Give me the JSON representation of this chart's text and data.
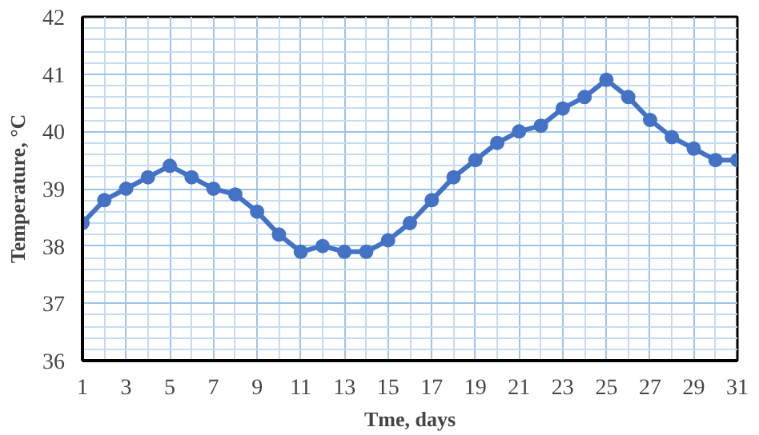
{
  "chart_data": {
    "type": "line",
    "xlabel": "Tme, days",
    "ylabel": "Temperature, °C",
    "x": [
      1,
      2,
      3,
      4,
      5,
      6,
      7,
      8,
      9,
      10,
      11,
      12,
      13,
      14,
      15,
      16,
      17,
      18,
      19,
      20,
      21,
      22,
      23,
      24,
      25,
      26,
      27,
      28,
      29,
      30,
      31
    ],
    "series": [
      {
        "color": "#4472c4",
        "values": [
          38.4,
          38.8,
          39.0,
          39.2,
          39.4,
          39.2,
          39.0,
          38.9,
          38.6,
          38.2,
          37.9,
          38.0,
          37.9,
          37.9,
          38.1,
          38.4,
          38.8,
          39.2,
          39.5,
          39.8,
          40.0,
          40.1,
          40.4,
          40.6,
          40.9,
          40.6,
          40.2,
          39.9,
          39.7,
          39.5,
          39.5
        ]
      }
    ],
    "xlim": [
      1,
      31
    ],
    "xticks": [
      1,
      3,
      5,
      7,
      9,
      11,
      13,
      15,
      17,
      19,
      21,
      23,
      25,
      27,
      29,
      31
    ],
    "ylim": [
      36,
      42
    ],
    "yticks": [
      36,
      37,
      38,
      39,
      40,
      41,
      42
    ],
    "grid": true,
    "marker": "circle",
    "line_style": "solid"
  }
}
